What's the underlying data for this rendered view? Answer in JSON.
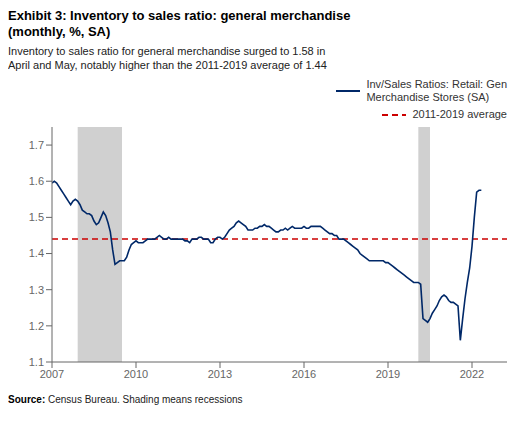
{
  "chart_data": {
    "type": "line",
    "title": "Exhibit 3: Inventory to sales ratio: general merchandise\n(monthly, %, SA)",
    "subtitle": "Inventory to sales ratio for general merchandise surged to 1.58 in\nApril and May, notably higher than the 2011-2019 average of 1.44",
    "source": "Source: Census Bureau. Shading means recessions",
    "x": [
      2007.0,
      2007.083,
      2007.167,
      2007.25,
      2007.333,
      2007.417,
      2007.5,
      2007.583,
      2007.667,
      2007.75,
      2007.833,
      2007.917,
      2008.0,
      2008.083,
      2008.167,
      2008.25,
      2008.333,
      2008.417,
      2008.5,
      2008.583,
      2008.667,
      2008.75,
      2008.833,
      2008.917,
      2009.0,
      2009.083,
      2009.167,
      2009.25,
      2009.333,
      2009.417,
      2009.5,
      2009.583,
      2009.667,
      2009.75,
      2009.833,
      2009.917,
      2010.0,
      2010.083,
      2010.167,
      2010.25,
      2010.333,
      2010.417,
      2010.5,
      2010.583,
      2010.667,
      2010.75,
      2010.833,
      2010.917,
      2011.0,
      2011.083,
      2011.167,
      2011.25,
      2011.333,
      2011.417,
      2011.5,
      2011.583,
      2011.667,
      2011.75,
      2011.833,
      2011.917,
      2012.0,
      2012.083,
      2012.167,
      2012.25,
      2012.333,
      2012.417,
      2012.5,
      2012.583,
      2012.667,
      2012.75,
      2012.833,
      2012.917,
      2013.0,
      2013.083,
      2013.167,
      2013.25,
      2013.333,
      2013.417,
      2013.5,
      2013.583,
      2013.667,
      2013.75,
      2013.833,
      2013.917,
      2014.0,
      2014.083,
      2014.167,
      2014.25,
      2014.333,
      2014.417,
      2014.5,
      2014.583,
      2014.667,
      2014.75,
      2014.833,
      2014.917,
      2015.0,
      2015.083,
      2015.167,
      2015.25,
      2015.333,
      2015.417,
      2015.5,
      2015.583,
      2015.667,
      2015.75,
      2015.833,
      2015.917,
      2016.0,
      2016.083,
      2016.167,
      2016.25,
      2016.333,
      2016.417,
      2016.5,
      2016.583,
      2016.667,
      2016.75,
      2016.833,
      2016.917,
      2017.0,
      2017.083,
      2017.167,
      2017.25,
      2017.333,
      2017.417,
      2017.5,
      2017.583,
      2017.667,
      2017.75,
      2017.833,
      2017.917,
      2018.0,
      2018.083,
      2018.167,
      2018.25,
      2018.333,
      2018.417,
      2018.5,
      2018.583,
      2018.667,
      2018.75,
      2018.833,
      2018.917,
      2019.0,
      2019.083,
      2019.167,
      2019.25,
      2019.333,
      2019.417,
      2019.5,
      2019.583,
      2019.667,
      2019.75,
      2019.833,
      2019.917,
      2020.0,
      2020.083,
      2020.167,
      2020.25,
      2020.333,
      2020.417,
      2020.5,
      2020.583,
      2020.667,
      2020.75,
      2020.833,
      2020.917,
      2021.0,
      2021.083,
      2021.167,
      2021.25,
      2021.333,
      2021.417,
      2021.5,
      2021.583,
      2021.667,
      2021.75,
      2021.833,
      2021.917,
      2022.0,
      2022.083,
      2022.167,
      2022.25,
      2022.333
    ],
    "series": [
      {
        "name": "Inv/Sales Ratios: Retail: Gen\nMerchandise Stores (SA)",
        "color": "#002868",
        "values": [
          1.595,
          1.6,
          1.595,
          1.585,
          1.575,
          1.565,
          1.555,
          1.545,
          1.535,
          1.545,
          1.55,
          1.545,
          1.535,
          1.52,
          1.515,
          1.51,
          1.51,
          1.505,
          1.49,
          1.48,
          1.485,
          1.5,
          1.515,
          1.505,
          1.485,
          1.46,
          1.41,
          1.37,
          1.375,
          1.38,
          1.38,
          1.38,
          1.39,
          1.41,
          1.425,
          1.43,
          1.435,
          1.43,
          1.43,
          1.43,
          1.435,
          1.44,
          1.44,
          1.44,
          1.44,
          1.445,
          1.45,
          1.445,
          1.44,
          1.44,
          1.445,
          1.44,
          1.44,
          1.44,
          1.44,
          1.44,
          1.44,
          1.435,
          1.435,
          1.43,
          1.44,
          1.44,
          1.44,
          1.445,
          1.445,
          1.44,
          1.44,
          1.44,
          1.43,
          1.43,
          1.44,
          1.445,
          1.445,
          1.44,
          1.445,
          1.455,
          1.465,
          1.47,
          1.475,
          1.485,
          1.49,
          1.485,
          1.48,
          1.475,
          1.465,
          1.465,
          1.465,
          1.47,
          1.47,
          1.475,
          1.475,
          1.48,
          1.475,
          1.475,
          1.47,
          1.465,
          1.46,
          1.46,
          1.465,
          1.465,
          1.47,
          1.465,
          1.47,
          1.475,
          1.47,
          1.47,
          1.47,
          1.47,
          1.475,
          1.47,
          1.47,
          1.475,
          1.475,
          1.475,
          1.475,
          1.475,
          1.47,
          1.465,
          1.46,
          1.455,
          1.455,
          1.45,
          1.45,
          1.44,
          1.44,
          1.44,
          1.435,
          1.43,
          1.425,
          1.42,
          1.415,
          1.41,
          1.4,
          1.395,
          1.39,
          1.385,
          1.38,
          1.38,
          1.38,
          1.38,
          1.38,
          1.38,
          1.38,
          1.375,
          1.375,
          1.37,
          1.365,
          1.36,
          1.355,
          1.35,
          1.345,
          1.34,
          1.335,
          1.33,
          1.325,
          1.32,
          1.32,
          1.32,
          1.315,
          1.22,
          1.215,
          1.21,
          1.22,
          1.235,
          1.245,
          1.255,
          1.27,
          1.28,
          1.285,
          1.28,
          1.27,
          1.265,
          1.265,
          1.26,
          1.255,
          1.16,
          1.22,
          1.275,
          1.32,
          1.36,
          1.42,
          1.5,
          1.57,
          1.575,
          1.575
        ]
      }
    ],
    "average": {
      "name": "2011-2019 average",
      "value": 1.44,
      "color": "#cc0000",
      "line_style": "dashed"
    },
    "shading": {
      "ranges": [
        [
          2007.917,
          2009.5
        ],
        [
          2020.083,
          2020.5
        ]
      ],
      "color": "#d0d0d0"
    },
    "xlim": [
      2007.0,
      2023.25
    ],
    "xticks": [
      2007,
      2010,
      2013,
      2016,
      2019,
      2022
    ],
    "ylim": [
      1.1,
      1.75
    ],
    "yticks": [
      1.1,
      1.2,
      1.3,
      1.4,
      1.5,
      1.6,
      1.7
    ],
    "grid": false,
    "legend": "upper right"
  }
}
